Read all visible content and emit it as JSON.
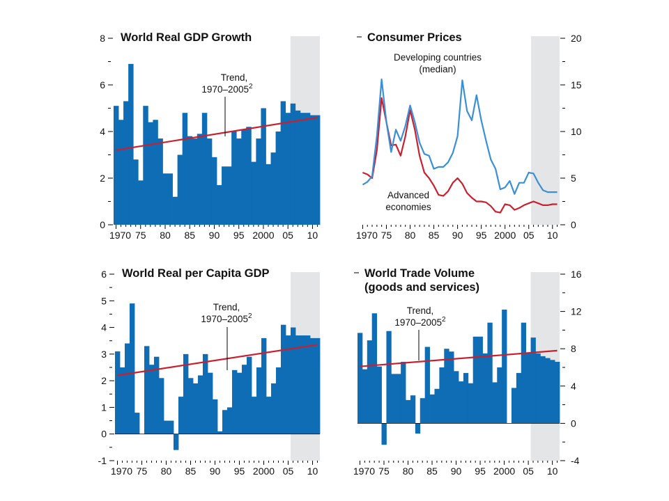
{
  "chart_data": [
    {
      "type": "bar",
      "title": "World Real GDP Growth",
      "ylim": [
        0,
        8
      ],
      "y_ticks": [
        "0",
        "2",
        "4",
        "6",
        "8"
      ],
      "x_tick_labels": [
        "1970",
        "75",
        "80",
        "85",
        "90",
        "95",
        "2000",
        "05",
        "10"
      ],
      "x": [
        1970,
        1971,
        1972,
        1973,
        1974,
        1975,
        1976,
        1977,
        1978,
        1979,
        1980,
        1981,
        1982,
        1983,
        1984,
        1985,
        1986,
        1987,
        1988,
        1989,
        1990,
        1991,
        1992,
        1993,
        1994,
        1995,
        1996,
        1997,
        1998,
        1999,
        2000,
        2001,
        2002,
        2003,
        2004,
        2005,
        2006,
        2007,
        2008,
        2009,
        2010,
        2011
      ],
      "values": [
        5.1,
        4.5,
        5.3,
        6.9,
        2.8,
        1.9,
        5.1,
        4.4,
        4.5,
        3.7,
        2.2,
        2.2,
        1.2,
        3.0,
        4.8,
        3.8,
        3.7,
        3.9,
        4.8,
        3.7,
        2.9,
        1.7,
        2.5,
        2.5,
        4.0,
        3.7,
        4.1,
        4.2,
        2.7,
        3.7,
        5.0,
        2.6,
        3.1,
        4.0,
        5.3,
        4.8,
        5.2,
        4.9,
        4.8,
        4.8,
        4.7,
        4.7
      ],
      "trend": {
        "name": "Trend, 1970–2005",
        "x": [
          1970,
          2011
        ],
        "y": [
          3.2,
          4.6
        ]
      },
      "shaded_x_range": [
        2006,
        2011
      ],
      "annotations": [
        "Trend,",
        "1970–2005",
        "2"
      ],
      "y_axis_side": "left"
    },
    {
      "type": "line",
      "title": "Consumer Prices",
      "ylim": [
        0,
        20
      ],
      "y_ticks": [
        "0",
        "5",
        "10",
        "15",
        "20"
      ],
      "x_tick_labels": [
        "1970",
        "75",
        "80",
        "85",
        "90",
        "95",
        "2000",
        "05",
        "10"
      ],
      "x": [
        1970,
        1971,
        1972,
        1973,
        1974,
        1975,
        1976,
        1977,
        1978,
        1979,
        1980,
        1981,
        1982,
        1983,
        1984,
        1985,
        1986,
        1987,
        1988,
        1989,
        1990,
        1991,
        1992,
        1993,
        1994,
        1995,
        1996,
        1997,
        1998,
        1999,
        2000,
        2001,
        2002,
        2003,
        2004,
        2005,
        2006,
        2007,
        2008,
        2009,
        2010,
        2011
      ],
      "series": [
        {
          "name": "Developing countries (median)",
          "color": "#3a8fd6",
          "values": [
            4.3,
            4.6,
            5.2,
            9.5,
            15.6,
            11.0,
            7.8,
            10.2,
            9.0,
            10.6,
            12.8,
            11.0,
            8.8,
            7.6,
            7.4,
            6.0,
            6.2,
            6.2,
            6.7,
            7.7,
            9.5,
            15.5,
            12.2,
            11.2,
            13.9,
            11.2,
            9.0,
            7.0,
            6.0,
            3.8,
            4.0,
            4.7,
            3.3,
            4.5,
            4.5,
            5.6,
            5.5,
            4.5,
            3.7,
            3.5,
            3.5,
            3.5
          ]
        },
        {
          "name": "Advanced economies",
          "color": "#c8202f",
          "values": [
            5.6,
            5.4,
            5.0,
            8.0,
            13.6,
            11.0,
            8.5,
            8.6,
            7.4,
            9.5,
            12.3,
            10.2,
            7.4,
            5.6,
            5.0,
            4.2,
            3.2,
            3.1,
            3.6,
            4.5,
            5.0,
            4.4,
            3.4,
            2.9,
            2.5,
            2.5,
            2.4,
            2.0,
            1.4,
            1.3,
            2.2,
            2.1,
            1.6,
            1.8,
            2.1,
            2.3,
            2.5,
            2.3,
            2.1,
            2.1,
            2.2,
            2.2
          ]
        }
      ],
      "shaded_x_range": [
        2006,
        2011
      ],
      "annotations": [
        "Developing countries",
        "(median)",
        "Advanced",
        "economies"
      ],
      "y_axis_side": "right"
    },
    {
      "type": "bar",
      "title": "World Real per Capita GDP",
      "ylim": [
        -1,
        6
      ],
      "y_ticks": [
        "-1",
        "0",
        "1",
        "2",
        "3",
        "4",
        "5",
        "6"
      ],
      "x_tick_labels": [
        "1970",
        "75",
        "80",
        "85",
        "90",
        "95",
        "2000",
        "05",
        "10"
      ],
      "x": [
        1970,
        1971,
        1972,
        1973,
        1974,
        1975,
        1976,
        1977,
        1978,
        1979,
        1980,
        1981,
        1982,
        1983,
        1984,
        1985,
        1986,
        1987,
        1988,
        1989,
        1990,
        1991,
        1992,
        1993,
        1994,
        1995,
        1996,
        1997,
        1998,
        1999,
        2000,
        2001,
        2002,
        2003,
        2004,
        2005,
        2006,
        2007,
        2008,
        2009,
        2010,
        2011
      ],
      "values": [
        3.1,
        2.5,
        3.4,
        4.9,
        0.8,
        0.0,
        3.3,
        2.6,
        2.9,
        2.1,
        0.5,
        0.5,
        -0.6,
        1.4,
        3.0,
        2.1,
        1.9,
        2.2,
        3.0,
        2.3,
        1.3,
        0.1,
        0.9,
        1.0,
        2.4,
        2.3,
        2.6,
        2.9,
        1.4,
        2.5,
        3.6,
        1.4,
        1.9,
        2.5,
        4.1,
        3.7,
        4.0,
        3.7,
        3.7,
        3.7,
        3.6,
        3.6
      ],
      "trend": {
        "name": "Trend, 1970–2005",
        "x": [
          1970,
          2011
        ],
        "y": [
          2.2,
          3.35
        ]
      },
      "shaded_x_range": [
        2006,
        2011
      ],
      "annotations": [
        "Trend,",
        "1970–2005",
        "2"
      ],
      "y_axis_side": "left"
    },
    {
      "type": "bar",
      "title": "World Trade Volume",
      "subtitle": "(goods and services)",
      "ylim": [
        -4,
        16
      ],
      "y_ticks": [
        "-4",
        "0",
        "4",
        "8",
        "12",
        "16"
      ],
      "x_tick_labels": [
        "1970",
        "75",
        "80",
        "85",
        "90",
        "95",
        "2000",
        "05",
        "10"
      ],
      "x": [
        1970,
        1971,
        1972,
        1973,
        1974,
        1975,
        1976,
        1977,
        1978,
        1979,
        1980,
        1981,
        1982,
        1983,
        1984,
        1985,
        1986,
        1987,
        1988,
        1989,
        1990,
        1991,
        1992,
        1993,
        1994,
        1995,
        1996,
        1997,
        1998,
        1999,
        2000,
        2001,
        2002,
        2003,
        2004,
        2005,
        2006,
        2007,
        2008,
        2009,
        2010,
        2011
      ],
      "values": [
        9.7,
        5.8,
        8.9,
        11.8,
        6.1,
        -2.3,
        9.9,
        5.3,
        5.3,
        6.6,
        2.5,
        3.0,
        -1.1,
        2.7,
        8.2,
        3.1,
        3.7,
        6.0,
        8.0,
        7.7,
        5.6,
        4.5,
        5.4,
        4.3,
        9.3,
        9.3,
        7.5,
        10.8,
        4.4,
        6.0,
        12.2,
        0.0,
        3.8,
        5.4,
        10.8,
        7.6,
        9.2,
        7.5,
        7.2,
        7.0,
        6.8,
        6.6
      ],
      "trend": {
        "name": "Trend, 1970–2005",
        "x": [
          1970,
          2011
        ],
        "y": [
          6.1,
          7.8
        ]
      },
      "shaded_x_range": [
        2006,
        2011
      ],
      "annotations": [
        "Trend,",
        "1970–2005",
        "2"
      ],
      "y_axis_side": "right"
    }
  ],
  "colors": {
    "bar": "#0e6db5",
    "trend": "#c8202f",
    "shade": "#e4e5e7",
    "axis": "#000000"
  }
}
